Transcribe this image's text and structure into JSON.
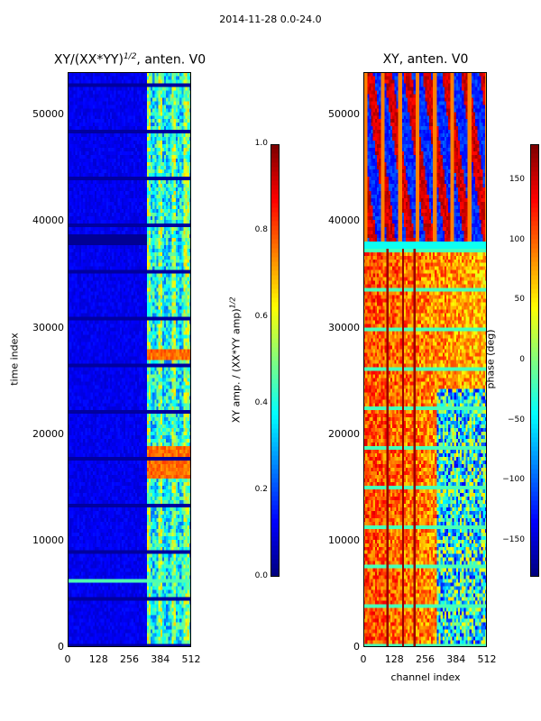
{
  "suptitle": "2014-11-28 0.0-24.0",
  "chart_data": [
    {
      "type": "heatmap",
      "title_main": "XY/(XX*YY)",
      "title_sup": "1/2",
      "title_tail": ", anten. V0",
      "xlabel": "",
      "ylabel": "time index",
      "xlim": [
        0,
        512
      ],
      "ylim": [
        0,
        54000
      ],
      "x_ticks": [
        0,
        128,
        256,
        384,
        512
      ],
      "x_tick_labels": [
        "0",
        "128",
        "256",
        "384",
        "512"
      ],
      "y_ticks": [
        0,
        10000,
        20000,
        30000,
        40000,
        50000
      ],
      "y_tick_labels": [
        "0",
        "10000",
        "20000",
        "30000",
        "40000",
        "50000"
      ],
      "colorbar": {
        "label_main": "XY amp. / (XX*YY amp)",
        "label_sup": "1/2",
        "range": [
          0.0,
          1.0
        ],
        "ticks": [
          0.0,
          0.2,
          0.4,
          0.6,
          0.8,
          1.0
        ],
        "tick_labels": [
          "0.0",
          "0.2",
          "0.4",
          "0.6",
          "0.8",
          "1.0"
        ],
        "colormap": "jet"
      }
    },
    {
      "type": "heatmap",
      "title": "XY, anten. V0",
      "xlabel": "channel index",
      "ylabel": "",
      "xlim": [
        0,
        512
      ],
      "ylim": [
        0,
        54000
      ],
      "x_ticks": [
        0,
        128,
        256,
        384,
        512
      ],
      "x_tick_labels": [
        "0",
        "128",
        "256",
        "384",
        "512"
      ],
      "y_ticks": [
        0,
        10000,
        20000,
        30000,
        40000,
        50000
      ],
      "y_tick_labels": [
        "0",
        "10000",
        "20000",
        "30000",
        "40000",
        "50000"
      ],
      "colorbar": {
        "label": "phase (deg)",
        "range": [
          -180,
          180
        ],
        "ticks": [
          -150,
          -100,
          -50,
          0,
          50,
          100,
          150
        ],
        "tick_labels": [
          "−150",
          "−100",
          "−50",
          "0",
          "50",
          "100",
          "150"
        ],
        "colormap": "jet"
      }
    }
  ]
}
